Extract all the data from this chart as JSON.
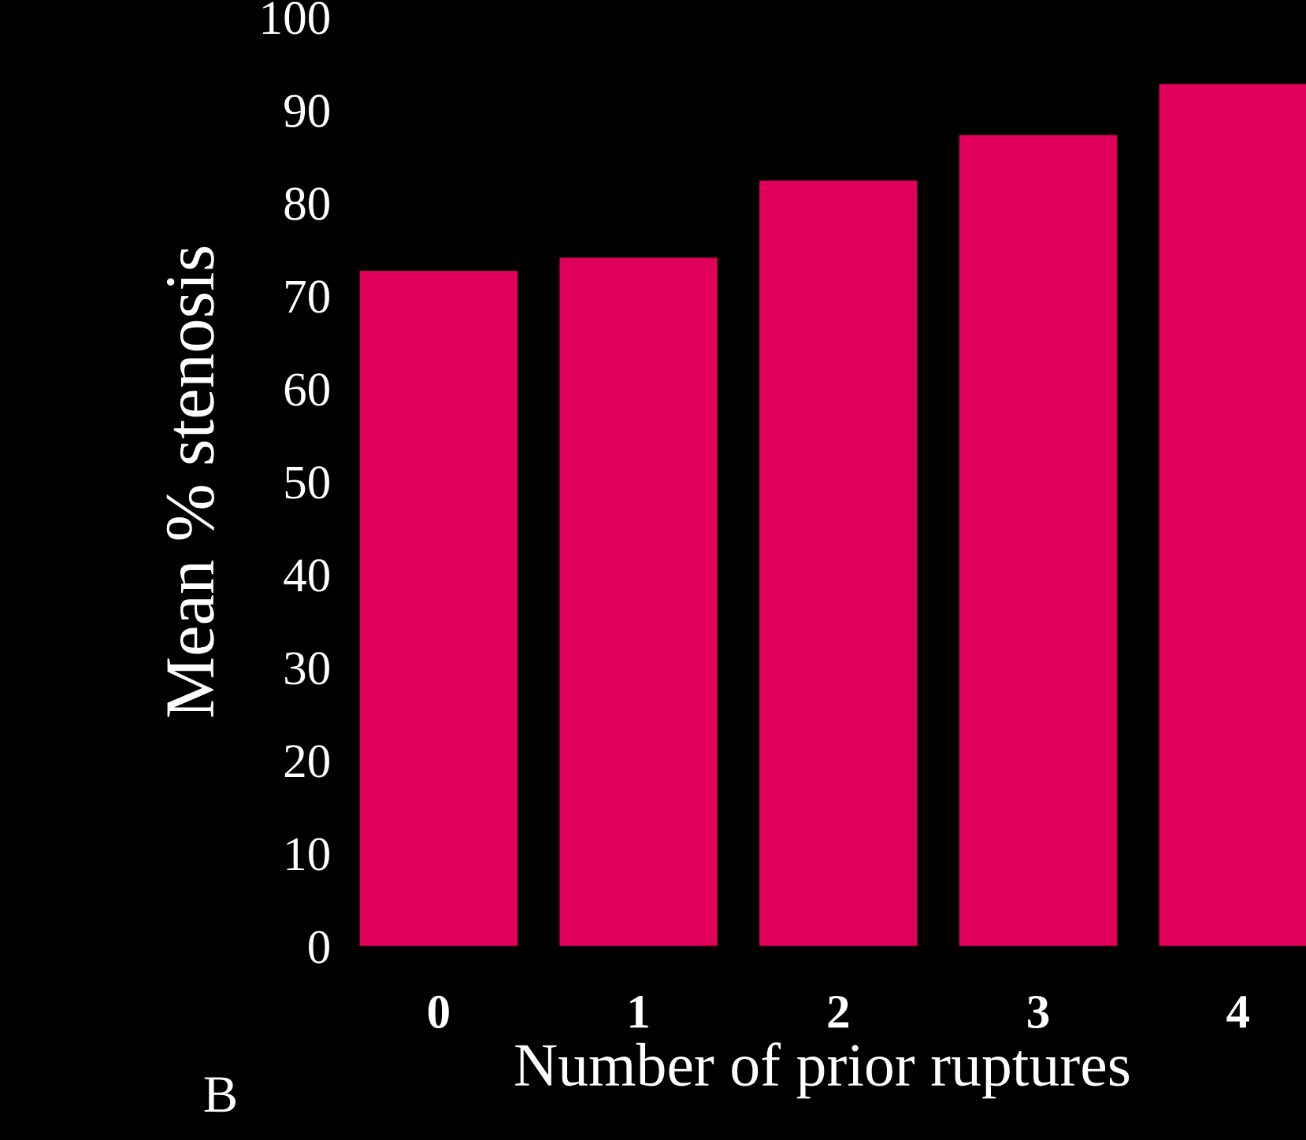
{
  "chart_data": {
    "type": "bar",
    "xlabel": "Number of prior ruptures",
    "ylabel": "Mean % stenosis",
    "categories": [
      "0",
      "1",
      "2",
      "3",
      "4"
    ],
    "values": [
      72.7,
      74.1,
      82.4,
      87.3,
      92.8
    ],
    "color": "#e0005c",
    "ylim": [
      0,
      100
    ],
    "yticks": [
      0,
      10,
      20,
      30,
      40,
      50,
      60,
      70,
      80,
      90,
      100
    ],
    "annotations": [
      "B"
    ]
  }
}
